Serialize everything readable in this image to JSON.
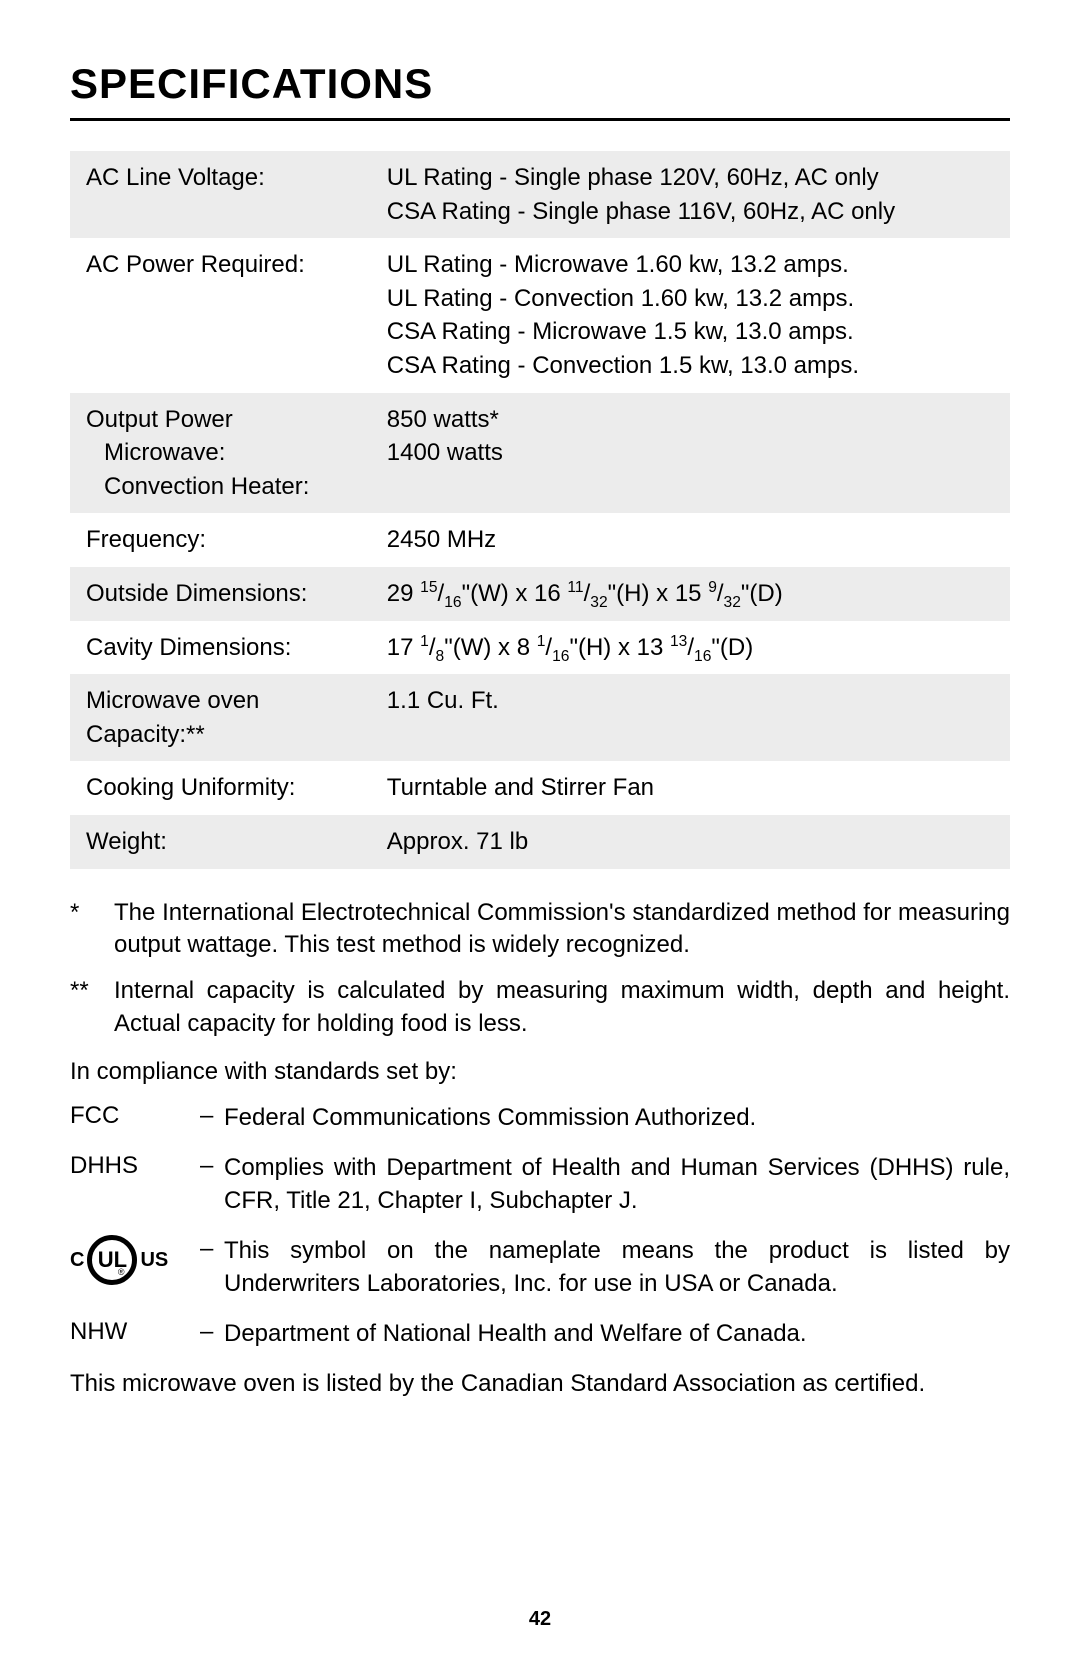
{
  "title": "SPECIFICATIONS",
  "page_number": "42",
  "table": {
    "rows": [
      {
        "label": "AC Line Voltage:",
        "value_lines": [
          "UL Rating - Single phase 120V, 60Hz, AC only",
          "CSA Rating - Single phase 116V, 60Hz, AC only"
        ]
      },
      {
        "label": "AC Power Required:",
        "value_lines": [
          "UL Rating - Microwave 1.60 kw, 13.2 amps.",
          "UL Rating - Convection 1.60 kw, 13.2 amps.",
          "CSA Rating - Microwave 1.5 kw, 13.0 amps.",
          "CSA Rating - Convection 1.5 kw, 13.0 amps."
        ]
      },
      {
        "label_lines": [
          "Output Power",
          "Microwave:",
          "Convection Heater:"
        ],
        "value_lines": [
          "",
          "850 watts*",
          "1400 watts"
        ],
        "sub_indent": true
      },
      {
        "label": "Frequency:",
        "value_lines": [
          "2450 MHz"
        ]
      },
      {
        "label": "Outside Dimensions:",
        "value_html": "29 <sup>15</sup>/<sub>16</sub>\"(W) x 16 <sup>11</sup>/<sub>32</sub>\"(H) x 15 <sup>9</sup>/<sub>32</sub>\"(D)"
      },
      {
        "label": "Cavity Dimensions:",
        "value_html": "17 <sup>1</sup>/<sub>8</sub>\"(W) x 8 <sup>1</sup>/<sub>16</sub>\"(H) x 13 <sup>13</sup>/<sub>16</sub>\"(D)"
      },
      {
        "label_lines": [
          "Microwave oven",
          "Capacity:**"
        ],
        "value_lines": [
          "1.1 Cu. Ft."
        ]
      },
      {
        "label": "Cooking Uniformity:",
        "value_lines": [
          "Turntable and Stirrer Fan"
        ]
      },
      {
        "label": "Weight:",
        "value_lines": [
          "Approx. 71 lb"
        ]
      }
    ],
    "colors": {
      "striped_bg": "#ececec",
      "plain_bg": "#ffffff",
      "text": "#000000"
    }
  },
  "footnotes": [
    {
      "mark": "*",
      "text": "The International Electrotechnical Commission's standardized method for measuring output wattage. This test method is widely recognized."
    },
    {
      "mark": "**",
      "text": "Internal capacity is calculated by measuring maximum width, depth and height. Actual capacity for holding food is less."
    }
  ],
  "compliance_intro": "In compliance with standards set by:",
  "compliance": [
    {
      "abbr": "FCC",
      "desc": "Federal Communications Commission Authorized."
    },
    {
      "abbr": "DHHS",
      "desc": "Complies with Department of Health and Human Services (DHHS) rule, CFR, Title 21, Chapter I, Subchapter J."
    },
    {
      "abbr": "UL_LOGO",
      "desc": "This symbol on the nameplate means the product is listed by Underwriters Laboratories, Inc. for use in USA or Canada."
    },
    {
      "abbr": "NHW",
      "desc": "Department of National Health and Welfare of Canada."
    }
  ],
  "final_text": "This microwave oven is listed by the Canadian Standard Association as certified.",
  "ul_logo": {
    "left": "C",
    "center": "UL",
    "right": "US"
  }
}
